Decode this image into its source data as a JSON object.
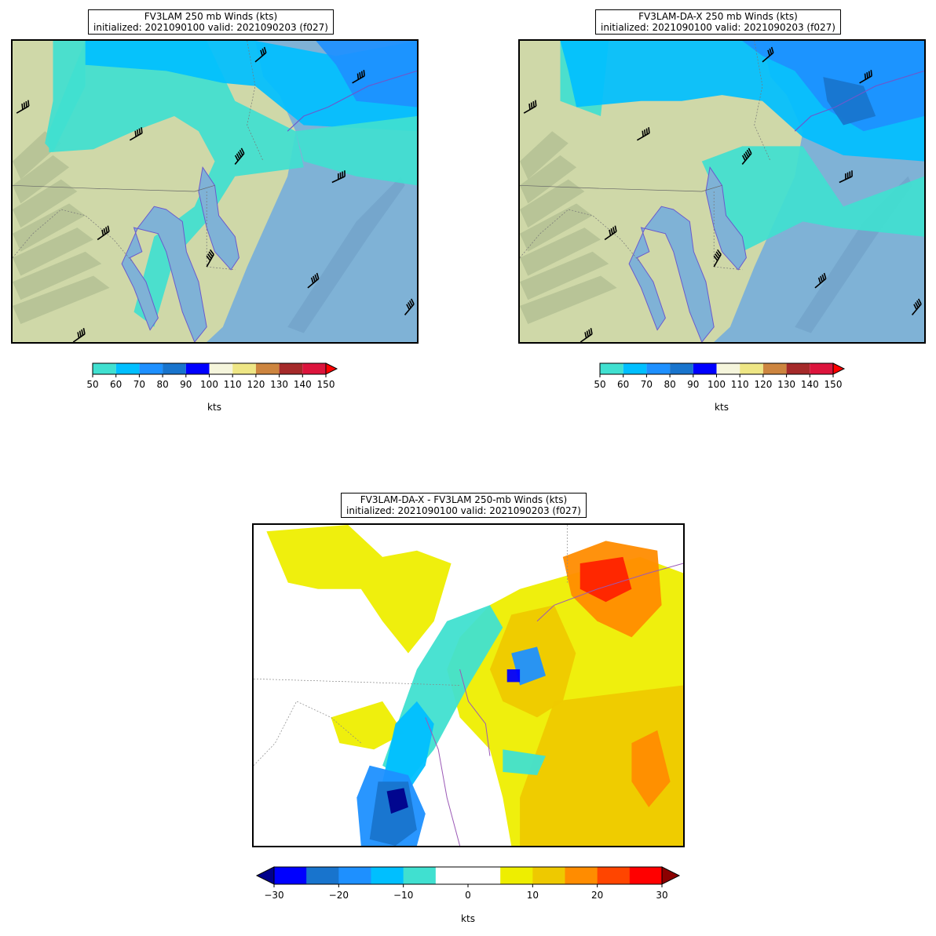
{
  "panels": [
    {
      "title_line1": "FV3LAM 250 mb Winds (kts)",
      "title_line2": "initialized: 2021090100 valid: 2021090203 (f027)"
    },
    {
      "title_line1": "FV3LAM-DA-X 250 mb Winds (kts)",
      "title_line2": "initialized: 2021090100 valid: 2021090203 (f027)"
    },
    {
      "title_line1": "FV3LAM-DA-X - FV3LAM 250-mb Winds (kts)",
      "title_line2": "initialized: 2021090100 valid: 2021090203 (f027)"
    }
  ],
  "wind_colorbar": {
    "ticks": [
      "50",
      "60",
      "70",
      "80",
      "90",
      "100",
      "110",
      "120",
      "130",
      "140",
      "150"
    ],
    "colors": [
      "#40e0d0",
      "#00bfff",
      "#1e90ff",
      "#1874cd",
      "#0000ff",
      "#f5f5dc",
      "#eee685",
      "#cd853f",
      "#a52a2a",
      "#dc143c"
    ],
    "extend_color": "#ff0000",
    "units": "kts"
  },
  "diff_colorbar": {
    "ticks": [
      "−30",
      "−20",
      "−10",
      "0",
      "10",
      "20",
      "30"
    ],
    "colors": [
      "#0000ff",
      "#1874cd",
      "#1e90ff",
      "#00bfff",
      "#40e0d0",
      "#ffffff",
      "#ffffff",
      "#eeee00",
      "#eec900",
      "#ff8c00",
      "#ff4500",
      "#ff0000"
    ],
    "extend_low": "#00008b",
    "extend_high": "#8b0000",
    "units": "kts"
  },
  "map_colors": {
    "ocean": "#7fb2d6",
    "land": "#cfd8a8",
    "coast": "#6a5acd",
    "cyan": "#40e0d0",
    "sky": "#00bfff",
    "blue": "#1e90ff",
    "yellow": "#eeee00",
    "gold": "#eec900",
    "orange": "#ff8c00",
    "red": "#ff2200"
  }
}
